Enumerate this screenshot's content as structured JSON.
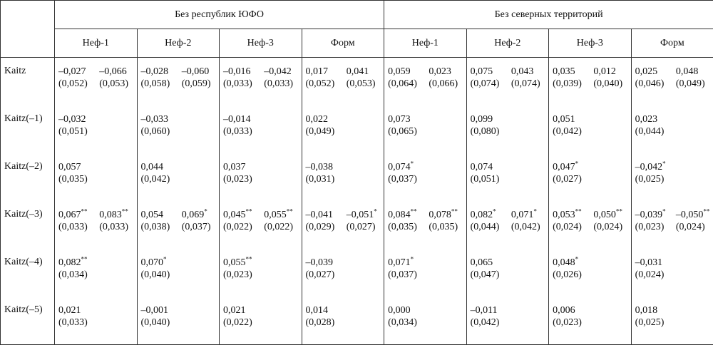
{
  "table": {
    "groups": [
      {
        "title": "Без республик ЮФО",
        "models": [
          "Неф-1",
          "Неф-2",
          "Неф-3",
          "Форм"
        ]
      },
      {
        "title": "Без северных территорий",
        "models": [
          "Неф-1",
          "Неф-2",
          "Неф-3",
          "Форм"
        ]
      }
    ],
    "rows": [
      {
        "label": "Kaitz",
        "cells": [
          {
            "coef": "–0,027",
            "se": "(0,052)"
          },
          {
            "coef": "–0,066",
            "se": "(0,053)"
          },
          {
            "coef": "–0,028",
            "se": "(0,058)"
          },
          {
            "coef": "–0,060",
            "se": "(0,059)"
          },
          {
            "coef": "–0,016",
            "se": "(0,033)"
          },
          {
            "coef": "–0,042",
            "se": "(0,033)"
          },
          {
            "coef": "0,017",
            "se": "(0,052)"
          },
          {
            "coef": "0,041",
            "se": "(0,053)"
          },
          {
            "coef": "0,059",
            "se": "(0,064)"
          },
          {
            "coef": "0,023",
            "se": "(0,066)"
          },
          {
            "coef": "0,075",
            "se": "(0,074)"
          },
          {
            "coef": "0,043",
            "se": "(0,074)"
          },
          {
            "coef": "0,035",
            "se": "(0,039)"
          },
          {
            "coef": "0,012",
            "se": "(0,040)"
          },
          {
            "coef": "0,025",
            "se": "(0,046)"
          },
          {
            "coef": "0,048",
            "se": "(0,049)"
          }
        ]
      },
      {
        "label": "Kaitz(–1)",
        "cells": [
          {
            "coef": "–0,032",
            "se": "(0,051)"
          },
          null,
          {
            "coef": "–0,033",
            "se": "(0,060)"
          },
          null,
          {
            "coef": "–0,014",
            "se": "(0,033)"
          },
          null,
          {
            "coef": "0,022",
            "se": "(0,049)"
          },
          null,
          {
            "coef": "0,073",
            "se": "(0,065)"
          },
          null,
          {
            "coef": "0,099",
            "se": "(0,080)"
          },
          null,
          {
            "coef": "0,051",
            "se": "(0,042)"
          },
          null,
          {
            "coef": "0,023",
            "se": "(0,044)"
          },
          null
        ]
      },
      {
        "label": "Kaitz(–2)",
        "cells": [
          {
            "coef": "0,057",
            "se": "(0,035)"
          },
          null,
          {
            "coef": "0,044",
            "se": "(0,042)"
          },
          null,
          {
            "coef": "0,037",
            "se": "(0,023)"
          },
          null,
          {
            "coef": "–0,038",
            "se": "(0,031)"
          },
          null,
          {
            "coef": "0,074",
            "stars": "*",
            "se": "(0,037)"
          },
          null,
          {
            "coef": "0,074",
            "se": "(0,051)"
          },
          null,
          {
            "coef": "0,047",
            "stars": "*",
            "se": "(0,027)"
          },
          null,
          {
            "coef": "–0,042",
            "stars": "*",
            "se": "(0,025)"
          },
          null
        ]
      },
      {
        "label": "Kaitz(–3)",
        "cells": [
          {
            "coef": "0,067",
            "stars": "**",
            "se": "(0,033)"
          },
          {
            "coef": "0,083",
            "stars": "**",
            "se": "(0,033)"
          },
          {
            "coef": "0,054",
            "se": "(0,038)"
          },
          {
            "coef": "0,069",
            "stars": "*",
            "se": "(0,037)"
          },
          {
            "coef": "0,045",
            "stars": "**",
            "se": "(0,022)"
          },
          {
            "coef": "0,055",
            "stars": "**",
            "se": "(0,022)"
          },
          {
            "coef": "–0,041",
            "se": "(0,029)"
          },
          {
            "coef": "–0,051",
            "stars": "*",
            "se": "(0,027)"
          },
          {
            "coef": "0,084",
            "stars": "**",
            "se": "(0,035)"
          },
          {
            "coef": "0,078",
            "stars": "**",
            "se": "(0,035)"
          },
          {
            "coef": "0,082",
            "stars": "*",
            "se": "(0,044)"
          },
          {
            "coef": "0,071",
            "stars": "*",
            "se": "(0,042)"
          },
          {
            "coef": "0,053",
            "stars": "**",
            "se": "(0,024)"
          },
          {
            "coef": "0,050",
            "stars": "**",
            "se": "(0,024)"
          },
          {
            "coef": "–0,039",
            "stars": "*",
            "se": "(0,023)"
          },
          {
            "coef": "–0,050",
            "stars": "**",
            "se": "(0,024)"
          }
        ]
      },
      {
        "label": "Kaitz(–4)",
        "cells": [
          {
            "coef": "0,082",
            "stars": "**",
            "se": "(0,034)"
          },
          null,
          {
            "coef": "0,070",
            "stars": "*",
            "se": "(0,040)"
          },
          null,
          {
            "coef": "0,055",
            "stars": "**",
            "se": "(0,023)"
          },
          null,
          {
            "coef": "–0,039",
            "se": "(0,027)"
          },
          null,
          {
            "coef": "0,071",
            "stars": "*",
            "se": "(0,037)"
          },
          null,
          {
            "coef": "0,065",
            "se": "(0,047)"
          },
          null,
          {
            "coef": "0,048",
            "stars": "*",
            "se": "(0,026)"
          },
          null,
          {
            "coef": "–0,031",
            "se": "(0,024)"
          },
          null
        ]
      },
      {
        "label": "Kaitz(–5)",
        "cells": [
          {
            "coef": "0,021",
            "se": "(0,033)"
          },
          null,
          {
            "coef": "–0,001",
            "se": "(0,040)"
          },
          null,
          {
            "coef": "0,021",
            "se": "(0,022)"
          },
          null,
          {
            "coef": "0,014",
            "se": "(0,028)"
          },
          null,
          {
            "coef": "0,000",
            "se": "(0,034)"
          },
          null,
          {
            "coef": "–0,011",
            "se": "(0,042)"
          },
          null,
          {
            "coef": "0,006",
            "se": "(0,023)"
          },
          null,
          {
            "coef": "0,018",
            "se": "(0,025)"
          },
          null
        ]
      }
    ]
  }
}
